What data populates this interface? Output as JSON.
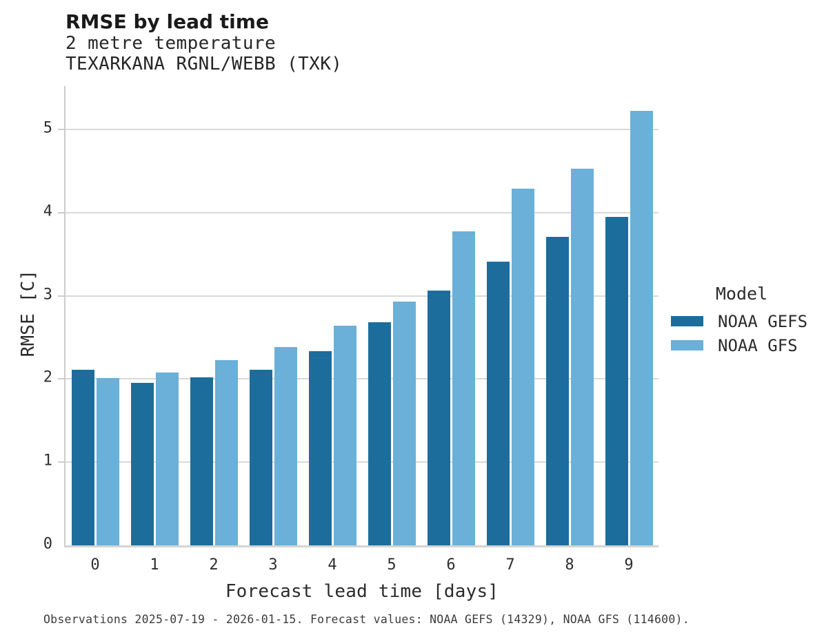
{
  "header": {
    "title": "RMSE by lead time",
    "subtitle1": "2 metre temperature",
    "subtitle2": "TEXARKANA RGNL/WEBB (TXK)"
  },
  "legend": {
    "title": "Model",
    "items": [
      {
        "label": "NOAA GEFS"
      },
      {
        "label": "NOAA GFS"
      }
    ]
  },
  "footer": {
    "note": "Observations 2025-07-19 - 2026-01-15. Forecast values: NOAA GEFS (14329), NOAA GFS (114600)."
  },
  "colors": {
    "gefs_dark_blue": "#1c6d9b",
    "gfs_light_blue": "#6ab0d8",
    "gridline": "#d9d9d9",
    "spine": "#cccccc"
  },
  "chart_data": {
    "type": "bar",
    "title": "RMSE by lead time",
    "subtitle": "2 metre temperature — TEXARKANA RGNL/WEBB (TXK)",
    "xlabel": "Forecast lead time [days]",
    "ylabel": "RMSE [C]",
    "categories": [
      "0",
      "1",
      "2",
      "3",
      "4",
      "5",
      "6",
      "7",
      "8",
      "9"
    ],
    "series": [
      {
        "name": "NOAA GEFS",
        "color": "#1c6d9b",
        "values": [
          2.11,
          1.95,
          2.02,
          2.11,
          2.33,
          2.68,
          3.06,
          3.41,
          3.71,
          3.95
        ]
      },
      {
        "name": "NOAA GFS",
        "color": "#6ab0d8",
        "values": [
          2.01,
          2.08,
          2.23,
          2.38,
          2.64,
          2.93,
          3.77,
          4.29,
          4.53,
          5.22
        ]
      }
    ],
    "ylim": [
      0,
      5.52
    ],
    "yticks": [
      0,
      1,
      2,
      3,
      4,
      5
    ],
    "grid": true,
    "legend_position": "right",
    "legend_title": "Model"
  }
}
